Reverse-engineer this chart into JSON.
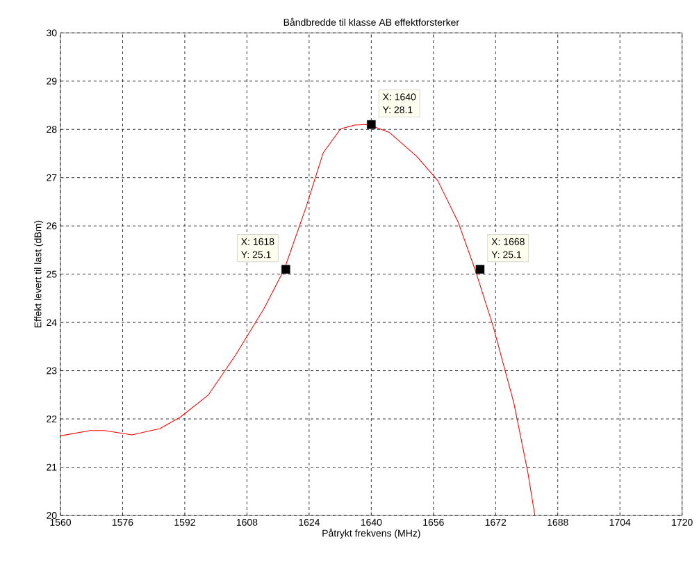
{
  "chart_data": {
    "type": "line",
    "title": "Båndbredde til klasse AB effektforsterker",
    "xlabel": "Påtrykt frekvens (MHz)",
    "ylabel": "Effekt levert til last (dBm)",
    "xlim": [
      1560,
      1720
    ],
    "ylim": [
      20,
      30
    ],
    "xticks": [
      1560,
      1576,
      1592,
      1608,
      1624,
      1640,
      1656,
      1672,
      1688,
      1704,
      1720
    ],
    "yticks": [
      20,
      21,
      22,
      23,
      24,
      25,
      26,
      27,
      28,
      29,
      30
    ],
    "grid": true,
    "series": [
      {
        "color": "#ff0000",
        "marker": "none",
        "x": [
          1560,
          1567.7,
          1571.3,
          1578.4,
          1585.6,
          1590.9,
          1598.1,
          1605.2,
          1612.4,
          1617.6,
          1623.1,
          1627.6,
          1632.1,
          1635.7,
          1639.2,
          1644.6,
          1651.7,
          1657.1,
          1662.4,
          1666.7,
          1671.4,
          1676.7,
          1680.3,
          1682.1
        ],
        "values": [
          21.65,
          21.76,
          21.76,
          21.67,
          21.8,
          22.04,
          22.5,
          23.34,
          24.29,
          25.1,
          26.36,
          27.51,
          28.01,
          28.09,
          28.1,
          27.94,
          27.44,
          26.94,
          26.07,
          25.1,
          23.91,
          22.33,
          20.89,
          20.0
        ]
      },
      {
        "type": "scatter",
        "color": "#000000",
        "marker": "square",
        "x": [
          1618,
          1640,
          1668
        ],
        "values": [
          25.1,
          28.1,
          25.1
        ]
      }
    ],
    "annotations": [
      {
        "text": "X: 1618",
        "x": 1618,
        "y": 25.1
      },
      {
        "text": "Y: 25.1",
        "x": 1618,
        "y": 25.1
      },
      {
        "text": "X: 1640",
        "x": 1640,
        "y": 28.1
      },
      {
        "text": "Y: 28.1",
        "x": 1640,
        "y": 28.1
      },
      {
        "text": "X: 1668",
        "x": 1668,
        "y": 25.1
      },
      {
        "text": "Y: 25.1",
        "x": 1668,
        "y": 25.1
      }
    ]
  }
}
